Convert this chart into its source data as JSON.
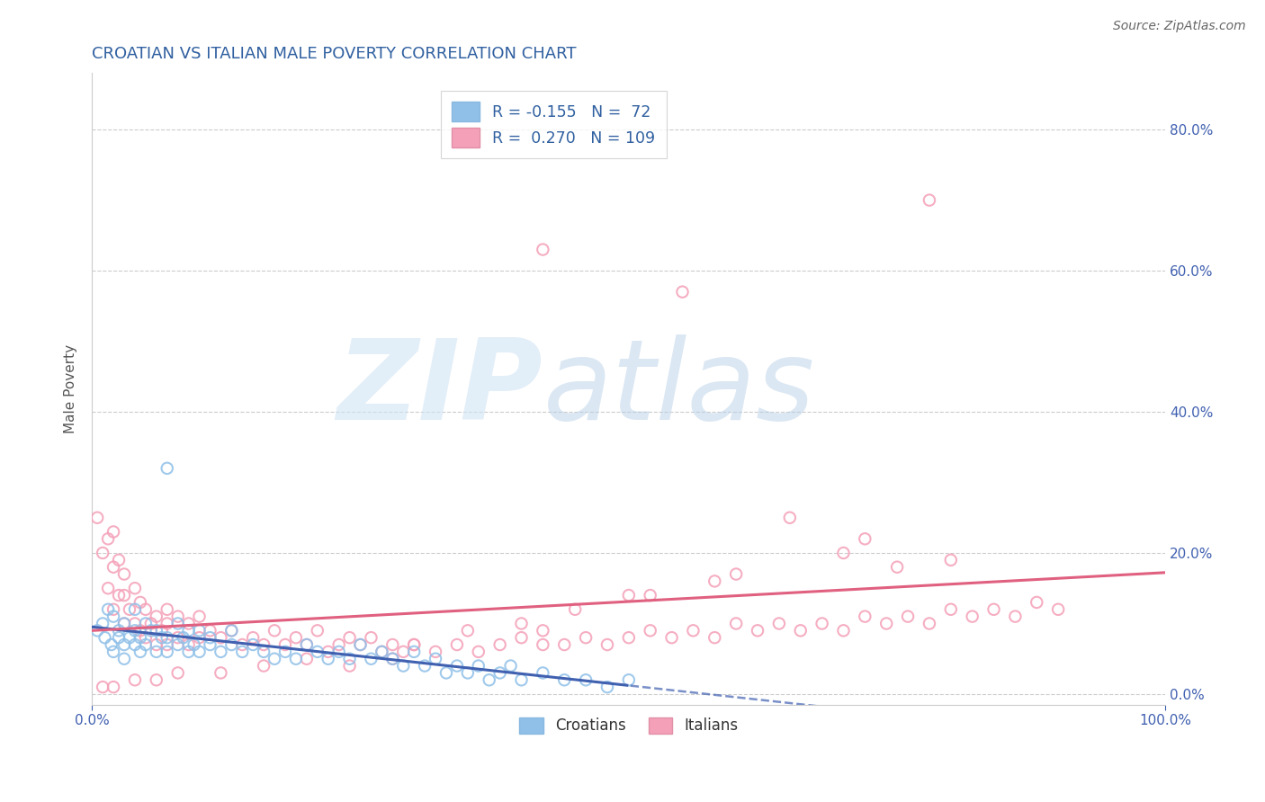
{
  "title": "CROATIAN VS ITALIAN MALE POVERTY CORRELATION CHART",
  "source_text": "Source: ZipAtlas.com",
  "ylabel": "Male Poverty",
  "xlim": [
    0.0,
    1.0
  ],
  "ylim": [
    -0.015,
    0.88
  ],
  "title_color": "#3060a0",
  "title_fontsize": 13,
  "background_color": "#ffffff",
  "croatian_color": "#90c0e8",
  "italian_color": "#f4a0b8",
  "croatian_line_color": "#4060b0",
  "italian_line_color": "#e06080",
  "grid_color": "#cccccc",
  "ytick_labels": [
    "0.0%",
    "20.0%",
    "40.0%",
    "60.0%",
    "80.0%"
  ],
  "ytick_values": [
    0.0,
    0.2,
    0.4,
    0.6,
    0.8
  ],
  "xtick_labels": [
    "0.0%",
    "100.0%"
  ],
  "xtick_values": [
    0.0,
    1.0
  ],
  "croatian_R": -0.155,
  "croatian_N": 72,
  "italian_R": 0.27,
  "italian_N": 109,
  "croatian_x": [
    0.005,
    0.01,
    0.012,
    0.015,
    0.018,
    0.02,
    0.02,
    0.025,
    0.025,
    0.03,
    0.03,
    0.03,
    0.035,
    0.04,
    0.04,
    0.04,
    0.045,
    0.045,
    0.05,
    0.05,
    0.055,
    0.06,
    0.06,
    0.065,
    0.07,
    0.07,
    0.07,
    0.08,
    0.08,
    0.085,
    0.09,
    0.09,
    0.095,
    0.1,
    0.1,
    0.11,
    0.11,
    0.12,
    0.13,
    0.13,
    0.14,
    0.15,
    0.16,
    0.17,
    0.18,
    0.19,
    0.2,
    0.21,
    0.22,
    0.23,
    0.24,
    0.25,
    0.26,
    0.27,
    0.28,
    0.29,
    0.3,
    0.31,
    0.32,
    0.33,
    0.34,
    0.35,
    0.36,
    0.37,
    0.38,
    0.39,
    0.4,
    0.42,
    0.44,
    0.46,
    0.48,
    0.5
  ],
  "croatian_y": [
    0.09,
    0.1,
    0.08,
    0.12,
    0.07,
    0.06,
    0.11,
    0.08,
    0.09,
    0.05,
    0.07,
    0.1,
    0.08,
    0.07,
    0.09,
    0.12,
    0.06,
    0.08,
    0.07,
    0.1,
    0.09,
    0.06,
    0.09,
    0.08,
    0.06,
    0.08,
    0.32,
    0.07,
    0.1,
    0.08,
    0.06,
    0.09,
    0.07,
    0.06,
    0.09,
    0.07,
    0.08,
    0.06,
    0.07,
    0.09,
    0.06,
    0.07,
    0.06,
    0.05,
    0.06,
    0.05,
    0.07,
    0.06,
    0.05,
    0.06,
    0.05,
    0.07,
    0.05,
    0.06,
    0.05,
    0.04,
    0.06,
    0.04,
    0.05,
    0.03,
    0.04,
    0.03,
    0.04,
    0.02,
    0.03,
    0.04,
    0.02,
    0.03,
    0.02,
    0.02,
    0.01,
    0.02
  ],
  "italian_x": [
    0.005,
    0.01,
    0.015,
    0.015,
    0.02,
    0.02,
    0.02,
    0.025,
    0.025,
    0.03,
    0.03,
    0.03,
    0.035,
    0.04,
    0.04,
    0.045,
    0.045,
    0.05,
    0.05,
    0.055,
    0.06,
    0.06,
    0.065,
    0.07,
    0.07,
    0.07,
    0.08,
    0.08,
    0.09,
    0.09,
    0.1,
    0.1,
    0.11,
    0.12,
    0.13,
    0.14,
    0.15,
    0.16,
    0.17,
    0.18,
    0.19,
    0.2,
    0.21,
    0.22,
    0.23,
    0.24,
    0.25,
    0.26,
    0.27,
    0.28,
    0.29,
    0.3,
    0.32,
    0.34,
    0.36,
    0.38,
    0.4,
    0.42,
    0.42,
    0.44,
    0.46,
    0.48,
    0.5,
    0.52,
    0.54,
    0.56,
    0.58,
    0.6,
    0.62,
    0.64,
    0.66,
    0.68,
    0.7,
    0.72,
    0.74,
    0.76,
    0.78,
    0.8,
    0.82,
    0.84,
    0.86,
    0.88,
    0.9,
    0.42,
    0.55,
    0.78,
    0.6,
    0.7,
    0.75,
    0.52,
    0.58,
    0.8,
    0.72,
    0.65,
    0.5,
    0.45,
    0.4,
    0.35,
    0.3,
    0.28,
    0.24,
    0.2,
    0.16,
    0.12,
    0.08,
    0.06,
    0.04,
    0.02,
    0.01
  ],
  "italian_y": [
    0.25,
    0.2,
    0.15,
    0.22,
    0.12,
    0.18,
    0.23,
    0.14,
    0.19,
    0.1,
    0.14,
    0.17,
    0.12,
    0.1,
    0.15,
    0.09,
    0.13,
    0.08,
    0.12,
    0.1,
    0.07,
    0.11,
    0.09,
    0.07,
    0.1,
    0.12,
    0.08,
    0.11,
    0.07,
    0.1,
    0.08,
    0.11,
    0.09,
    0.08,
    0.09,
    0.07,
    0.08,
    0.07,
    0.09,
    0.07,
    0.08,
    0.07,
    0.09,
    0.06,
    0.07,
    0.08,
    0.07,
    0.08,
    0.06,
    0.07,
    0.06,
    0.07,
    0.06,
    0.07,
    0.06,
    0.07,
    0.08,
    0.07,
    0.09,
    0.07,
    0.08,
    0.07,
    0.08,
    0.09,
    0.08,
    0.09,
    0.08,
    0.1,
    0.09,
    0.1,
    0.09,
    0.1,
    0.09,
    0.11,
    0.1,
    0.11,
    0.1,
    0.12,
    0.11,
    0.12,
    0.11,
    0.13,
    0.12,
    0.63,
    0.57,
    0.7,
    0.17,
    0.2,
    0.18,
    0.14,
    0.16,
    0.19,
    0.22,
    0.25,
    0.14,
    0.12,
    0.1,
    0.09,
    0.07,
    0.05,
    0.04,
    0.05,
    0.04,
    0.03,
    0.03,
    0.02,
    0.02,
    0.01,
    0.01
  ]
}
